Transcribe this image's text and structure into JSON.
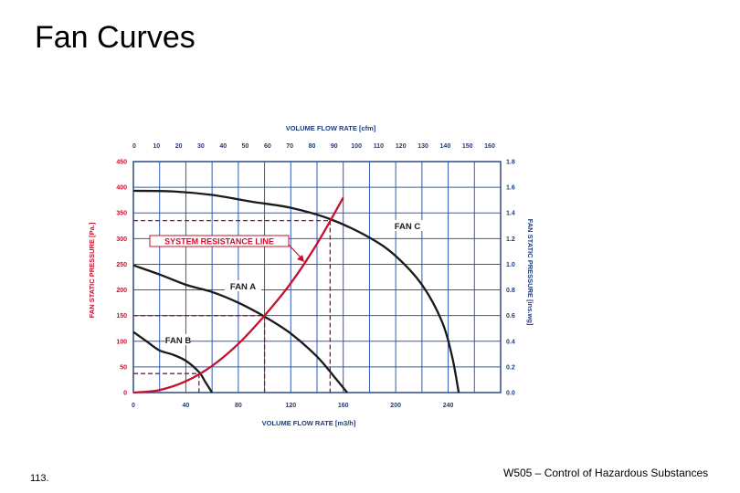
{
  "slide": {
    "title": "Fan Curves",
    "page_number": "113.",
    "footer": "W505 – Control of Hazardous Substances"
  },
  "chart_data": {
    "type": "line",
    "top_axis": {
      "title": "VOLUME FLOW RATE [cfm]",
      "ticks": [
        0,
        10,
        20,
        30,
        40,
        50,
        60,
        70,
        80,
        90,
        100,
        110,
        120,
        130,
        140,
        150,
        160
      ]
    },
    "bottom_axis": {
      "title": "VOLUME FLOW RATE [m3/h]",
      "ticks": [
        0,
        40,
        80,
        120,
        160,
        200,
        240
      ],
      "range": [
        0,
        280
      ]
    },
    "left_axis": {
      "title": "FAN STATIC PRESSURE [Pa.]",
      "ticks": [
        0,
        50,
        100,
        150,
        200,
        250,
        300,
        350,
        400,
        450
      ],
      "range": [
        0,
        450
      ]
    },
    "right_axis": {
      "title": "FAN STATIC PRESSURE [ins.wg]",
      "ticks": [
        "0.0",
        "0.2",
        "0.4",
        "0.6",
        "0.8",
        "1.0",
        "1.2",
        "1.4",
        "1.6",
        "1.8"
      ]
    },
    "grid": true,
    "series": [
      {
        "name": "FAN A",
        "color": "#1a1a1a",
        "points": [
          [
            0,
            248
          ],
          [
            20,
            230
          ],
          [
            40,
            210
          ],
          [
            60,
            196
          ],
          [
            80,
            175
          ],
          [
            100,
            148
          ],
          [
            120,
            115
          ],
          [
            140,
            70
          ],
          [
            155,
            25
          ],
          [
            163,
            0
          ]
        ]
      },
      {
        "name": "FAN B",
        "color": "#1a1a1a",
        "points": [
          [
            0,
            118
          ],
          [
            10,
            100
          ],
          [
            20,
            82
          ],
          [
            30,
            74
          ],
          [
            40,
            62
          ],
          [
            50,
            40
          ],
          [
            55,
            20
          ],
          [
            60,
            0
          ]
        ]
      },
      {
        "name": "FAN C",
        "color": "#1a1a1a",
        "points": [
          [
            0,
            393
          ],
          [
            30,
            392
          ],
          [
            60,
            385
          ],
          [
            90,
            372
          ],
          [
            120,
            360
          ],
          [
            150,
            338
          ],
          [
            180,
            302
          ],
          [
            200,
            266
          ],
          [
            220,
            210
          ],
          [
            235,
            140
          ],
          [
            243,
            70
          ],
          [
            248,
            0
          ]
        ]
      },
      {
        "name": "SYSTEM RESISTANCE LINE",
        "color": "#c8102e",
        "points": [
          [
            0,
            0
          ],
          [
            20,
            5
          ],
          [
            40,
            22
          ],
          [
            60,
            52
          ],
          [
            80,
            95
          ],
          [
            100,
            150
          ],
          [
            120,
            213
          ],
          [
            140,
            290
          ],
          [
            160,
            380
          ]
        ]
      }
    ],
    "operating_points": [
      {
        "series": "FAN B",
        "x": 50,
        "y": 37
      },
      {
        "series": "FAN A",
        "x": 100,
        "y": 150
      },
      {
        "series": "FAN C",
        "x": 150,
        "y": 335
      }
    ]
  }
}
